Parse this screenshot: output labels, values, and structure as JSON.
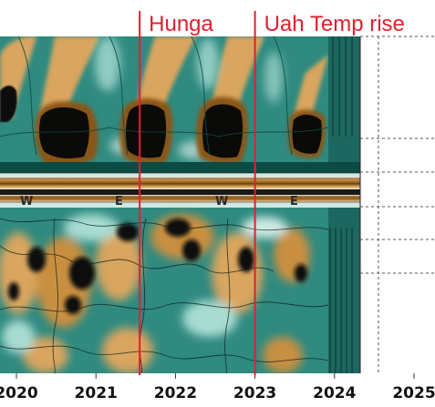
{
  "chart_data": {
    "type": "heatmap",
    "title": "",
    "xlabel": "",
    "ylabel": "",
    "x_ticks": [
      "2020",
      "2021",
      "2022",
      "2023",
      "2024",
      "2025"
    ],
    "x_range": [
      2019.95,
      2025.2
    ],
    "data_extent_x": [
      2019.95,
      2024.4
    ],
    "band_labels": [
      "W",
      "E",
      "W",
      "E"
    ],
    "annotations": [
      {
        "label": "Hunga",
        "x": 2021.55,
        "color": "#e02030"
      },
      {
        "label": "Uah Temp rise",
        "x": 2023.0,
        "color": "#e02030"
      }
    ],
    "grid": "dotted horizontal lines right of data",
    "colors": {
      "dark": "#0a0a08",
      "brown": "#8a5514",
      "tan": "#d9a55f",
      "cream": "#f3ead6",
      "teal": "#2f8a80",
      "teal_dark": "#0c4a44",
      "teal_light": "#a8dcd2"
    }
  }
}
